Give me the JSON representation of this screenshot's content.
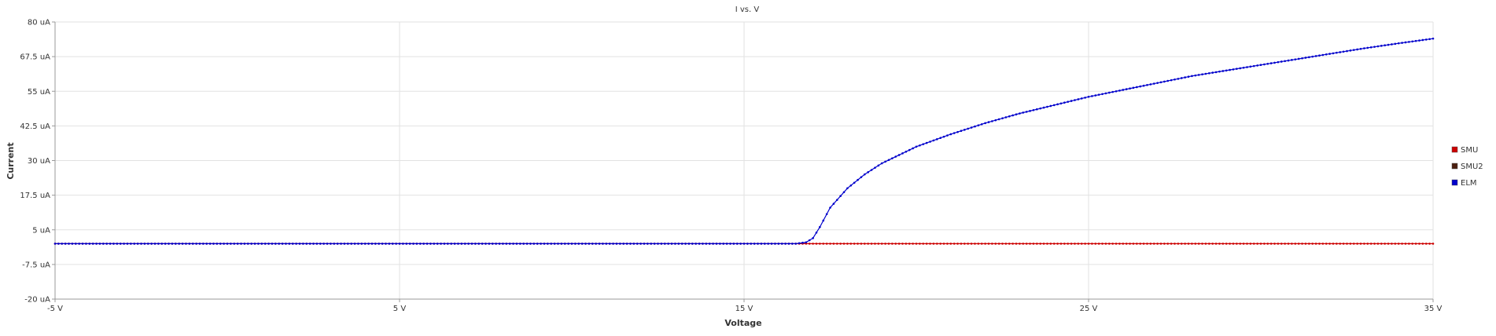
{
  "chart_data": {
    "type": "line",
    "title": "I vs. V",
    "xlabel": "Voltage",
    "ylabel": "Current",
    "xlim": [
      -5,
      35
    ],
    "ylim": [
      -20,
      80
    ],
    "x_ticks": [
      {
        "value": -5,
        "label": "-5 V"
      },
      {
        "value": 5,
        "label": "5 V"
      },
      {
        "value": 15,
        "label": "15 V"
      },
      {
        "value": 25,
        "label": "25 V"
      },
      {
        "value": 35,
        "label": "35 V"
      }
    ],
    "y_ticks": [
      {
        "value": 80,
        "label": "80 uA"
      },
      {
        "value": 67.5,
        "label": "67.5 uA"
      },
      {
        "value": 55,
        "label": "55 uA"
      },
      {
        "value": 42.5,
        "label": "42.5 uA"
      },
      {
        "value": 30,
        "label": "30 uA"
      },
      {
        "value": 17.5,
        "label": "17.5 uA"
      },
      {
        "value": 5,
        "label": "5 uA"
      },
      {
        "value": -7.5,
        "label": "-7.5 uA"
      },
      {
        "value": -20,
        "label": "-20 uA"
      }
    ],
    "grid": true,
    "legend_position": "right",
    "series": [
      {
        "name": "SMU",
        "color": "#cc0000",
        "x": [
          -5,
          0,
          5,
          10,
          15,
          16.5,
          17,
          18,
          19,
          20,
          22,
          25,
          28,
          30,
          32,
          35
        ],
        "y": [
          0,
          0,
          0,
          0,
          0,
          0,
          0,
          0,
          0,
          0,
          0,
          0,
          0,
          0,
          0,
          0
        ]
      },
      {
        "name": "SMU2",
        "color": "#4a1f0f",
        "x": [],
        "y": []
      },
      {
        "name": "ELM",
        "color": "#0000cc",
        "x": [
          -5,
          0,
          5,
          10,
          15,
          16.5,
          16.8,
          17.0,
          17.2,
          17.5,
          18.0,
          18.5,
          19.0,
          19.5,
          20.0,
          21.0,
          22.0,
          23.0,
          24.0,
          25.0,
          26.0,
          27.0,
          28.0,
          29.0,
          30.0,
          31.0,
          32.0,
          33.0,
          34.0,
          35.0
        ],
        "y": [
          0,
          0,
          0,
          0,
          0,
          0,
          0.5,
          2,
          6,
          13,
          20,
          25,
          29,
          32,
          35,
          39.5,
          43.5,
          47,
          50,
          53,
          55.5,
          58,
          60.5,
          62.5,
          64.5,
          66.5,
          68.5,
          70.5,
          72.3,
          74
        ]
      }
    ]
  }
}
